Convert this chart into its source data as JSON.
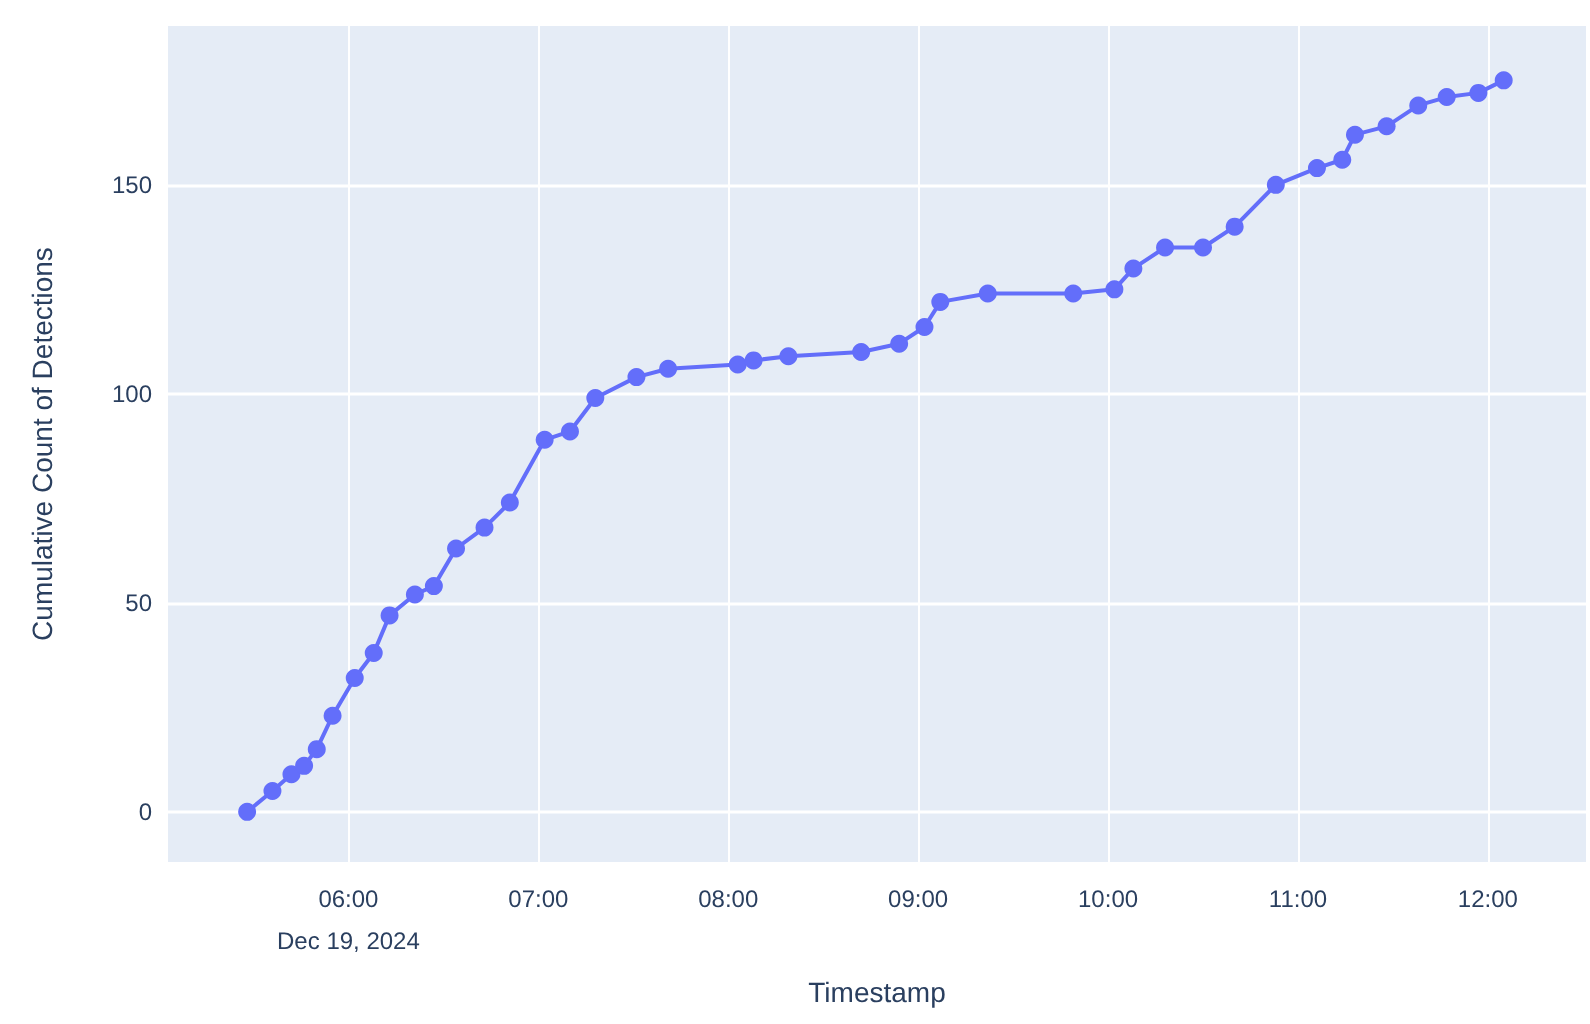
{
  "chart_data": {
    "type": "line",
    "xlabel": "Timestamp",
    "ylabel": "Cumulative Count of Detections",
    "x": [
      "2024-12-19T05:28",
      "2024-12-19T05:36",
      "2024-12-19T05:42",
      "2024-12-19T05:46",
      "2024-12-19T05:50",
      "2024-12-19T05:55",
      "2024-12-19T06:02",
      "2024-12-19T06:08",
      "2024-12-19T06:13",
      "2024-12-19T06:21",
      "2024-12-19T06:27",
      "2024-12-19T06:34",
      "2024-12-19T06:43",
      "2024-12-19T06:51",
      "2024-12-19T07:02",
      "2024-12-19T07:10",
      "2024-12-19T07:18",
      "2024-12-19T07:31",
      "2024-12-19T07:41",
      "2024-12-19T08:03",
      "2024-12-19T08:08",
      "2024-12-19T08:19",
      "2024-12-19T08:42",
      "2024-12-19T08:54",
      "2024-12-19T09:02",
      "2024-12-19T09:07",
      "2024-12-19T09:22",
      "2024-12-19T09:49",
      "2024-12-19T10:02",
      "2024-12-19T10:08",
      "2024-12-19T10:18",
      "2024-12-19T10:30",
      "2024-12-19T10:40",
      "2024-12-19T10:53",
      "2024-12-19T11:06",
      "2024-12-19T11:14",
      "2024-12-19T11:18",
      "2024-12-19T11:28",
      "2024-12-19T11:38",
      "2024-12-19T11:47",
      "2024-12-19T11:57",
      "2024-12-19T12:05"
    ],
    "series": [
      {
        "color": "#636efa",
        "values": [
          0,
          5,
          9,
          11,
          15,
          23,
          32,
          38,
          47,
          52,
          54,
          63,
          68,
          74,
          89,
          91,
          99,
          104,
          106,
          107,
          108,
          109,
          110,
          112,
          116,
          122,
          124,
          124,
          125,
          130,
          135,
          135,
          140,
          150,
          154,
          156,
          162,
          164,
          169,
          171,
          172,
          175
        ]
      }
    ],
    "xlim": [
      "2024-12-19T05:03",
      "2024-12-19T12:31"
    ],
    "xticks": [
      {
        "value": "2024-12-19T06:00",
        "label": "06:00\nDec 19, 2024"
      },
      {
        "value": "2024-12-19T07:00",
        "label": "07:00"
      },
      {
        "value": "2024-12-19T08:00",
        "label": "08:00"
      },
      {
        "value": "2024-12-19T09:00",
        "label": "09:00"
      },
      {
        "value": "2024-12-19T10:00",
        "label": "10:00"
      },
      {
        "value": "2024-12-19T11:00",
        "label": "11:00"
      },
      {
        "value": "2024-12-19T12:00",
        "label": "12:00"
      }
    ],
    "ylim": [
      -12,
      188
    ],
    "yticks": [
      0,
      50,
      100,
      150
    ],
    "grid": true,
    "marker": "circle"
  }
}
